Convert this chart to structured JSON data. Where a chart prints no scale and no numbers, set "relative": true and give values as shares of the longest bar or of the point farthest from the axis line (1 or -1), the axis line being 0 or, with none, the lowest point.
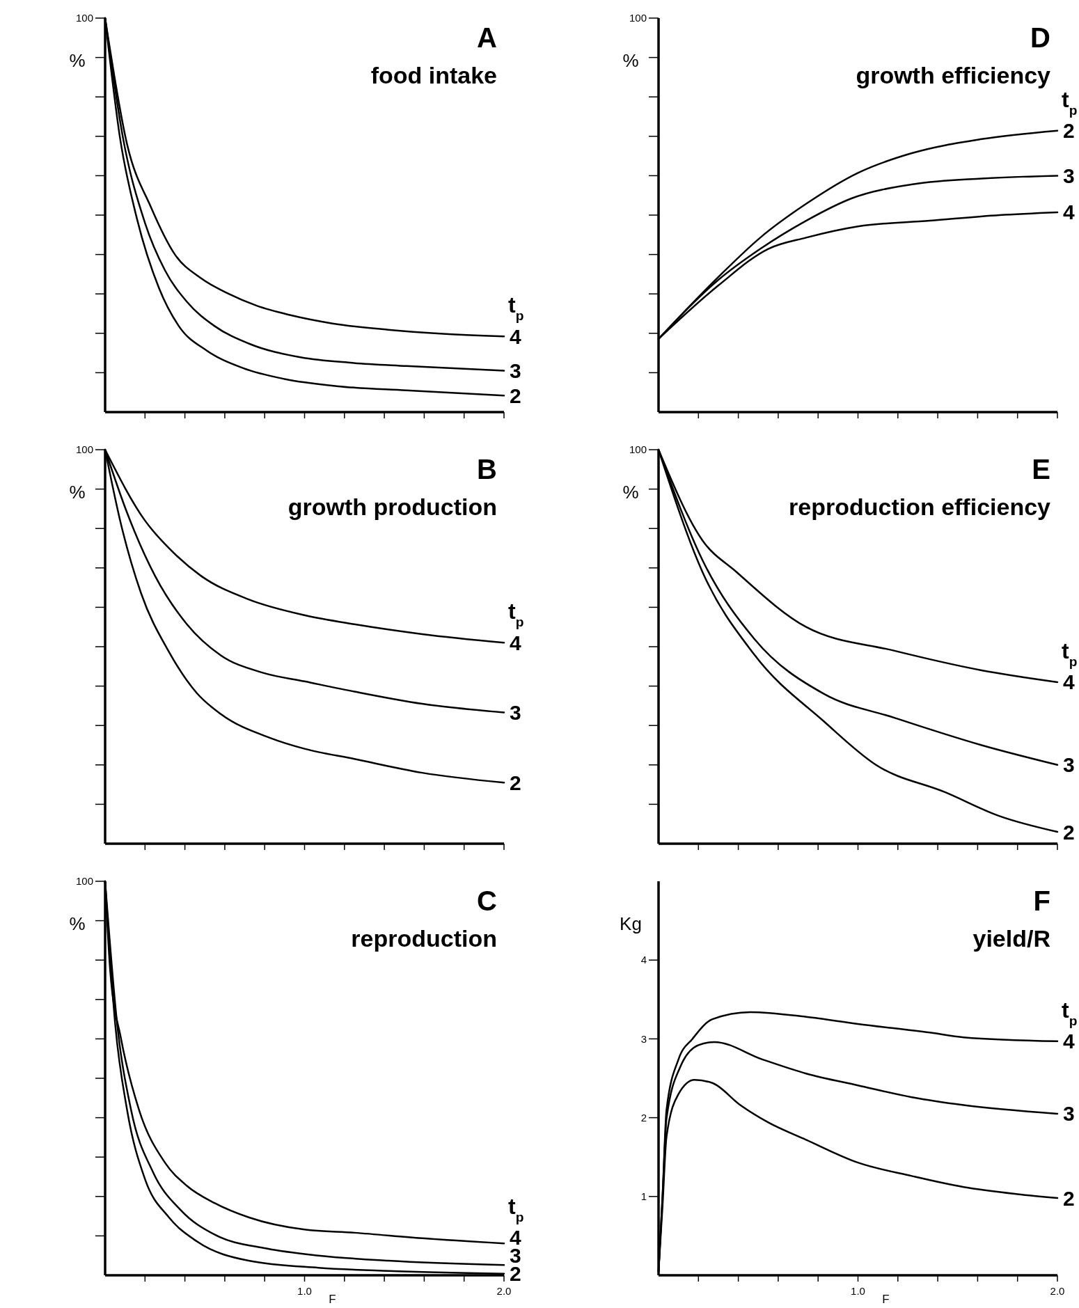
{
  "chart_data": [
    {
      "type": "line",
      "title": "A",
      "subtitle": "food intake",
      "ylabel": "%",
      "legend_title": "t$_{p}$",
      "tick_labels": false,
      "relative": true,
      "annotations": [
        "100"
      ],
      "xlim": [
        0,
        2.0
      ],
      "xticks": [
        {
          "value": 0.2,
          "label": null
        },
        {
          "value": 0.4,
          "label": null
        },
        {
          "value": 0.6,
          "label": null
        },
        {
          "value": 0.8,
          "label": null
        },
        {
          "value": 1.0,
          "label": null
        },
        {
          "value": 1.2,
          "label": null
        },
        {
          "value": 1.4,
          "label": null
        },
        {
          "value": 1.6,
          "label": null
        },
        {
          "value": 1.8,
          "label": null
        },
        {
          "value": 2.0,
          "label": null
        }
      ],
      "series": [
        {
          "name": "4",
          "color": "#000000",
          "x": [
            0,
            0.11,
            0.23,
            0.35,
            0.48,
            0.62,
            0.76,
            0.93,
            1.14,
            1.42,
            1.68,
            2.0
          ],
          "values": [
            1,
            0.68,
            0.52,
            0.4,
            0.34,
            0.3,
            0.27,
            0.246,
            0.225,
            0.209,
            0.199,
            0.192
          ]
        },
        {
          "name": "3",
          "color": "#000000",
          "x": [
            0,
            0.09,
            0.2,
            0.3,
            0.41,
            0.55,
            0.72,
            0.98,
            1.24,
            1.51,
            2.0
          ],
          "values": [
            1,
            0.695,
            0.48,
            0.36,
            0.28,
            0.218,
            0.174,
            0.139,
            0.125,
            0.117,
            0.105
          ]
        },
        {
          "name": "2",
          "color": "#000000",
          "x": [
            0,
            0.075,
            0.16,
            0.27,
            0.37,
            0.51,
            0.69,
            0.9,
            1.16,
            1.51,
            2.0
          ],
          "values": [
            1,
            0.695,
            0.49,
            0.315,
            0.218,
            0.156,
            0.112,
            0.084,
            0.066,
            0.055,
            0.042
          ]
        }
      ]
    },
    {
      "type": "line",
      "title": "D",
      "subtitle": "growth efficiency",
      "ylabel": "%",
      "legend_title": "t$_{p}$",
      "tick_labels": false,
      "relative": true,
      "annotations": [
        "100"
      ],
      "xlim": [
        0,
        2.0
      ],
      "xticks": [
        {
          "value": 0.2,
          "label": null
        },
        {
          "value": 0.4,
          "label": null
        },
        {
          "value": 0.6,
          "label": null
        },
        {
          "value": 0.8,
          "label": null
        },
        {
          "value": 1.0,
          "label": null
        },
        {
          "value": 1.2,
          "label": null
        },
        {
          "value": 1.4,
          "label": null
        },
        {
          "value": 1.6,
          "label": null
        },
        {
          "value": 1.8,
          "label": null
        },
        {
          "value": 2.0,
          "label": null
        }
      ],
      "series": [
        {
          "name": "2",
          "color": "#000000",
          "x": [
            0,
            0.3,
            0.51,
            0.74,
            1.0,
            1.27,
            1.62,
            2.0
          ],
          "values": [
            0.26,
            0.48,
            0.62,
            0.74,
            0.85,
            0.92,
            0.97,
            1
          ]
        },
        {
          "name": "3",
          "color": "#000000",
          "x": [
            0,
            0.3,
            0.51,
            0.74,
            0.97,
            1.28,
            1.62,
            2.0
          ],
          "values": [
            0.26,
            0.47,
            0.58,
            0.68,
            0.76,
            0.81,
            0.83,
            0.84
          ]
        },
        {
          "name": "4",
          "color": "#000000",
          "x": [
            0,
            0.3,
            0.55,
            0.74,
            1.0,
            1.36,
            1.71,
            2.0
          ],
          "values": [
            0.26,
            0.45,
            0.58,
            0.62,
            0.66,
            0.68,
            0.7,
            0.71
          ]
        }
      ]
    },
    {
      "type": "line",
      "title": "B",
      "subtitle": "growth production",
      "ylabel": "%",
      "legend_title": "t$_{p}$",
      "tick_labels": false,
      "relative": true,
      "annotations": [
        "100"
      ],
      "xlim": [
        0,
        2.0
      ],
      "xticks": [
        {
          "value": 0.2,
          "label": null
        },
        {
          "value": 0.4,
          "label": null
        },
        {
          "value": 0.6,
          "label": null
        },
        {
          "value": 0.8,
          "label": null
        },
        {
          "value": 1.0,
          "label": null
        },
        {
          "value": 1.2,
          "label": null
        },
        {
          "value": 1.4,
          "label": null
        },
        {
          "value": 1.6,
          "label": null
        },
        {
          "value": 1.8,
          "label": null
        },
        {
          "value": 2.0,
          "label": null
        }
      ],
      "series": [
        {
          "name": "4",
          "color": "#000000",
          "x": [
            0,
            0.2,
            0.34,
            0.48,
            0.72,
            1.0,
            1.25,
            1.59,
            2.0
          ],
          "values": [
            1,
            0.82,
            0.74,
            0.68,
            0.62,
            0.58,
            0.557,
            0.532,
            0.51
          ]
        },
        {
          "name": "3",
          "color": "#000000",
          "x": [
            0,
            0.11,
            0.25,
            0.41,
            0.58,
            0.79,
            1.0,
            1.25,
            1.59,
            2.0
          ],
          "values": [
            1,
            0.84,
            0.68,
            0.557,
            0.478,
            0.434,
            0.412,
            0.386,
            0.355,
            0.333
          ]
        },
        {
          "name": "2",
          "color": "#000000",
          "x": [
            0,
            0.08,
            0.18,
            0.32,
            0.46,
            0.58,
            0.83,
            1.0,
            1.25,
            1.59,
            2.0
          ],
          "values": [
            1,
            0.81,
            0.636,
            0.487,
            0.382,
            0.329,
            0.268,
            0.241,
            0.215,
            0.18,
            0.155
          ]
        }
      ]
    },
    {
      "type": "line",
      "title": "E",
      "subtitle": "reproduction efficiency",
      "ylabel": "%",
      "legend_title": "t$_{p}$",
      "tick_labels": false,
      "relative": true,
      "annotations": [
        "100"
      ],
      "xlim": [
        0,
        2.0
      ],
      "xticks": [
        {
          "value": 0.2,
          "label": null
        },
        {
          "value": 0.4,
          "label": null
        },
        {
          "value": 0.6,
          "label": null
        },
        {
          "value": 0.8,
          "label": null
        },
        {
          "value": 1.0,
          "label": null
        },
        {
          "value": 1.2,
          "label": null
        },
        {
          "value": 1.4,
          "label": null
        },
        {
          "value": 1.6,
          "label": null
        },
        {
          "value": 1.8,
          "label": null
        },
        {
          "value": 2.0,
          "label": null
        }
      ],
      "series": [
        {
          "name": "4",
          "color": "#000000",
          "x": [
            0,
            0.22,
            0.39,
            0.74,
            1.18,
            1.62,
            2.0
          ],
          "values": [
            1,
            0.77,
            0.69,
            0.55,
            0.49,
            0.44,
            0.41
          ]
        },
        {
          "name": "3",
          "color": "#000000",
          "x": [
            0,
            0.22,
            0.48,
            0.83,
            1.18,
            1.62,
            2.0
          ],
          "values": [
            1,
            0.72,
            0.52,
            0.38,
            0.32,
            0.25,
            0.2
          ]
        },
        {
          "name": "2",
          "color": "#000000",
          "x": [
            0,
            0.22,
            0.48,
            0.83,
            1.09,
            1.44,
            1.71,
            2.0
          ],
          "values": [
            1,
            0.69,
            0.48,
            0.31,
            0.2,
            0.13,
            0.07,
            0.03
          ]
        }
      ]
    },
    {
      "type": "line",
      "title": "C",
      "subtitle": "reproduction",
      "ylabel": "%",
      "xlabel": "F",
      "legend_title": "t$_{p}$",
      "tick_labels": "x",
      "relative": true,
      "annotations": [
        "100"
      ],
      "xlim": [
        0,
        2.0
      ],
      "xticks": [
        {
          "value": 0.2,
          "label": null
        },
        {
          "value": 0.4,
          "label": null
        },
        {
          "value": 0.6,
          "label": null
        },
        {
          "value": 0.8,
          "label": null
        },
        {
          "value": 1.0,
          "label": "1.0"
        },
        {
          "value": 1.2,
          "label": null
        },
        {
          "value": 1.4,
          "label": null
        },
        {
          "value": 1.6,
          "label": null
        },
        {
          "value": 1.8,
          "label": null
        },
        {
          "value": 2.0,
          "label": "2.0"
        }
      ],
      "series": [
        {
          "name": "4",
          "color": "#000000",
          "x": [
            0,
            0.026,
            0.08,
            0.17,
            0.3,
            0.41,
            0.55,
            0.72,
            1.0,
            1.25,
            1.59,
            2.0
          ],
          "values": [
            1,
            0.77,
            0.6,
            0.42,
            0.286,
            0.227,
            0.183,
            0.147,
            0.116,
            0.108,
            0.094,
            0.081
          ]
        },
        {
          "name": "3",
          "color": "#000000",
          "x": [
            0,
            0.06,
            0.13,
            0.24,
            0.38,
            0.55,
            0.81,
            1.07,
            1.42,
            2.0
          ],
          "values": [
            1,
            0.64,
            0.42,
            0.262,
            0.165,
            0.103,
            0.068,
            0.05,
            0.037,
            0.026
          ]
        },
        {
          "name": "2",
          "color": "#000000",
          "x": [
            0,
            0.05,
            0.11,
            0.2,
            0.32,
            0.46,
            0.72,
            1.07,
            1.42,
            2.0
          ],
          "values": [
            1,
            0.64,
            0.42,
            0.244,
            0.147,
            0.086,
            0.037,
            0.019,
            0.011,
            0.004
          ]
        }
      ]
    },
    {
      "type": "line",
      "title": "F",
      "subtitle": "yield/R",
      "ylabel": "Kg",
      "xlabel": "F",
      "legend_title": "t$_{p}$",
      "xlim": [
        0,
        2.0
      ],
      "xticks": [
        {
          "value": 0.2,
          "label": null
        },
        {
          "value": 0.4,
          "label": null
        },
        {
          "value": 0.6,
          "label": null
        },
        {
          "value": 0.8,
          "label": null
        },
        {
          "value": 1.0,
          "label": "1.0"
        },
        {
          "value": 1.2,
          "label": null
        },
        {
          "value": 1.4,
          "label": null
        },
        {
          "value": 1.6,
          "label": null
        },
        {
          "value": 1.8,
          "label": null
        },
        {
          "value": 2.0,
          "label": "2.0"
        }
      ],
      "ylim": [
        0,
        5
      ],
      "yticks": [
        1,
        2,
        3,
        4
      ],
      "series": [
        {
          "name": "4",
          "color": "#000000",
          "x": [
            0,
            0.02,
            0.04,
            0.1,
            0.17,
            0.27,
            0.46,
            0.74,
            1.0,
            1.36,
            1.53,
            2.0
          ],
          "values": [
            0.05,
            1.0,
            2.1,
            2.74,
            3.0,
            3.25,
            3.34,
            3.28,
            3.19,
            3.08,
            3.02,
            2.97
          ]
        },
        {
          "name": "3",
          "color": "#000000",
          "x": [
            0,
            0.02,
            0.04,
            0.11,
            0.2,
            0.28,
            0.52,
            0.74,
            1.0,
            1.27,
            1.53,
            2.0
          ],
          "values": [
            0.05,
            1.0,
            1.99,
            2.65,
            2.92,
            2.96,
            2.74,
            2.56,
            2.41,
            2.26,
            2.16,
            2.05
          ]
        },
        {
          "name": "2",
          "color": "#000000",
          "x": [
            0,
            0.02,
            0.04,
            0.1,
            0.18,
            0.27,
            0.41,
            0.55,
            0.74,
            1.0,
            1.27,
            1.53,
            1.8,
            2.0
          ],
          "values": [
            0.05,
            0.88,
            1.76,
            2.3,
            2.48,
            2.44,
            2.16,
            1.94,
            1.72,
            1.43,
            1.26,
            1.12,
            1.03,
            0.98
          ]
        }
      ]
    }
  ]
}
